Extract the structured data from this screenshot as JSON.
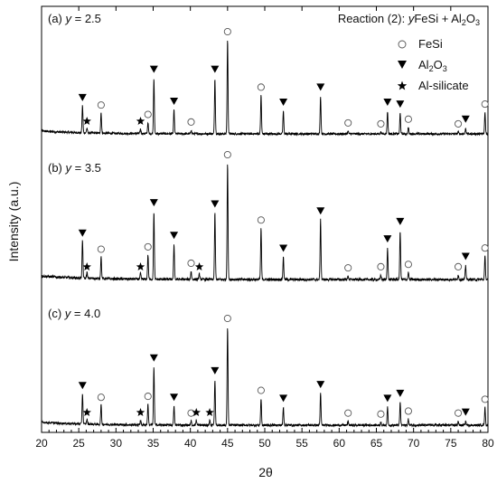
{
  "chart_data": {
    "type": "line",
    "xlabel": "2θ",
    "ylabel": "Intensity (a.u.)",
    "xlim": [
      20,
      80
    ],
    "xticks": [
      20,
      25,
      30,
      35,
      40,
      45,
      50,
      55,
      60,
      65,
      70,
      75,
      80
    ],
    "title_parts": [
      "Reaction (2): ",
      "y",
      "FeSi + Al",
      "2",
      "O",
      "3"
    ],
    "legend": {
      "placement": "top-right",
      "entries": [
        {
          "symbol": "circle",
          "parts": [
            "FeSi"
          ]
        },
        {
          "symbol": "triangle",
          "parts": [
            "Al",
            "2",
            "O",
            "3"
          ]
        },
        {
          "symbol": "star",
          "parts": [
            "Al-silicate"
          ]
        }
      ]
    },
    "series": [
      {
        "name": "(a) y = 2.5",
        "label_parts": [
          "(a) ",
          "y",
          " = 2.5"
        ]
      },
      {
        "name": "(b) y = 3.5",
        "label_parts": [
          "(b) ",
          "y",
          " = 3.5"
        ]
      },
      {
        "name": "(c) y = 4.0",
        "label_parts": [
          "(c) ",
          "y",
          " = 4.0"
        ]
      }
    ],
    "peaks": {
      "FeSi": [
        28.0,
        34.3,
        40.1,
        45.0,
        49.5,
        61.2,
        65.6,
        69.3,
        76.0,
        79.6
      ],
      "Al2O3": [
        25.5,
        35.1,
        37.8,
        43.3,
        52.5,
        57.5,
        66.5,
        68.2,
        77.0
      ],
      "Al_silicate": {
        "a": [
          26.1,
          33.3
        ],
        "b": [
          26.1,
          33.3,
          41.2
        ],
        "c": [
          26.1,
          33.3,
          40.8,
          42.6
        ]
      }
    },
    "relative_intensity": {
      "a": {
        "25.5": 0.29,
        "28.0": 0.22,
        "34.3": 0.12,
        "35.1": 0.59,
        "37.8": 0.25,
        "40.1": 0.04,
        "43.3": 0.59,
        "45.0": 1.0,
        "49.5": 0.41,
        "52.5": 0.24,
        "57.5": 0.4,
        "61.2": 0.03,
        "65.6": 0.02,
        "66.5": 0.24,
        "68.2": 0.22,
        "69.3": 0.07,
        "76.0": 0.02,
        "77.0": 0.06,
        "79.6": 0.23
      },
      "b": {
        "25.5": 0.32,
        "28.0": 0.19,
        "34.3": 0.21,
        "35.1": 0.58,
        "37.8": 0.3,
        "40.1": 0.07,
        "43.3": 0.57,
        "45.0": 1.0,
        "49.5": 0.44,
        "52.5": 0.19,
        "57.5": 0.51,
        "61.2": 0.03,
        "65.6": 0.04,
        "66.5": 0.27,
        "68.2": 0.42,
        "69.3": 0.06,
        "76.0": 0.04,
        "77.0": 0.12,
        "79.6": 0.2
      },
      "c": {
        "25.5": 0.31,
        "28.0": 0.2,
        "34.3": 0.21,
        "35.1": 0.59,
        "37.8": 0.19,
        "40.1": 0.04,
        "43.3": 0.46,
        "45.0": 1.0,
        "49.5": 0.27,
        "52.5": 0.18,
        "57.5": 0.32,
        "61.2": 0.04,
        "65.6": 0.03,
        "66.5": 0.18,
        "68.2": 0.23,
        "69.3": 0.06,
        "76.0": 0.04,
        "77.0": 0.04,
        "79.6": 0.18
      }
    },
    "grid": false
  }
}
